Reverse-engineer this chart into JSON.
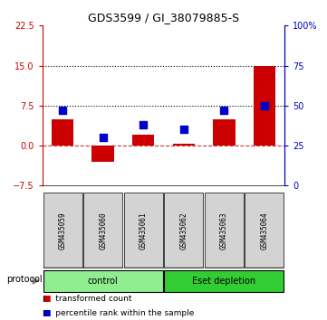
{
  "title": "GDS3599 / GI_38079885-S",
  "samples": [
    "GSM435059",
    "GSM435060",
    "GSM435061",
    "GSM435062",
    "GSM435063",
    "GSM435064"
  ],
  "red_values": [
    5.0,
    -3.0,
    2.0,
    0.3,
    5.0,
    15.0
  ],
  "blue_values": [
    47,
    30,
    38,
    35,
    47,
    50
  ],
  "left_ylim": [
    -7.5,
    22.5
  ],
  "right_ylim": [
    0,
    100
  ],
  "left_yticks": [
    -7.5,
    0,
    7.5,
    15,
    22.5
  ],
  "right_yticks": [
    0,
    25,
    50,
    75,
    100
  ],
  "dotted_lines": [
    7.5,
    15
  ],
  "dashed_line": 0,
  "group_control_label": "control",
  "group_eset_label": "Eset depletion",
  "group_control_color": "#90EE90",
  "group_eset_color": "#32CD32",
  "protocol_label": "protocol",
  "bar_color_red": "#CC0000",
  "bar_color_blue": "#0000CC",
  "bg_color_plot": "#FFFFFF",
  "bg_color_sample": "#D3D3D3",
  "left_axis_color": "#CC0000",
  "right_axis_color": "#0000CC",
  "legend_red": "transformed count",
  "legend_blue": "percentile rank within the sample",
  "bar_width": 0.55,
  "blue_square_size": 35
}
